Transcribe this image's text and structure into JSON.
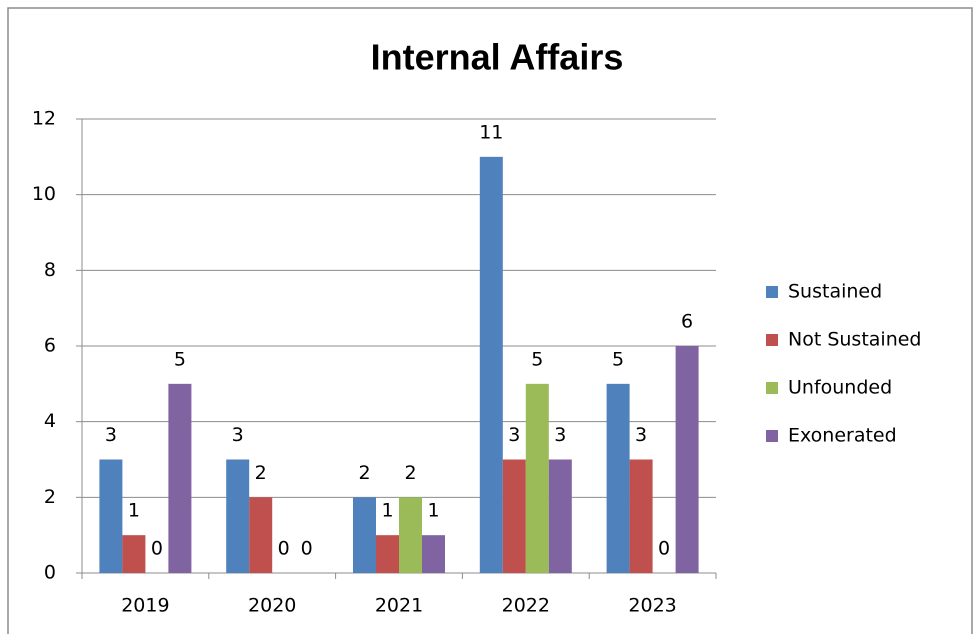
{
  "chart_data": {
    "type": "bar",
    "title": "Internal Affairs",
    "categories": [
      "2019",
      "2020",
      "2021",
      "2022",
      "2023"
    ],
    "series": [
      {
        "name": "Sustained",
        "color": "#4f81bd",
        "values": [
          3,
          3,
          2,
          11,
          5
        ]
      },
      {
        "name": "Not Sustained",
        "color": "#c0504d",
        "values": [
          1,
          2,
          1,
          3,
          3
        ]
      },
      {
        "name": "Unfounded",
        "color": "#9bbb59",
        "values": [
          0,
          0,
          2,
          5,
          0
        ]
      },
      {
        "name": "Exonerated",
        "color": "#8064a2",
        "values": [
          5,
          0,
          1,
          3,
          6
        ]
      }
    ],
    "ylim": [
      0,
      12
    ],
    "yticks": [
      0,
      2,
      4,
      6,
      8,
      10,
      12
    ],
    "grid": true,
    "legend": "right"
  }
}
